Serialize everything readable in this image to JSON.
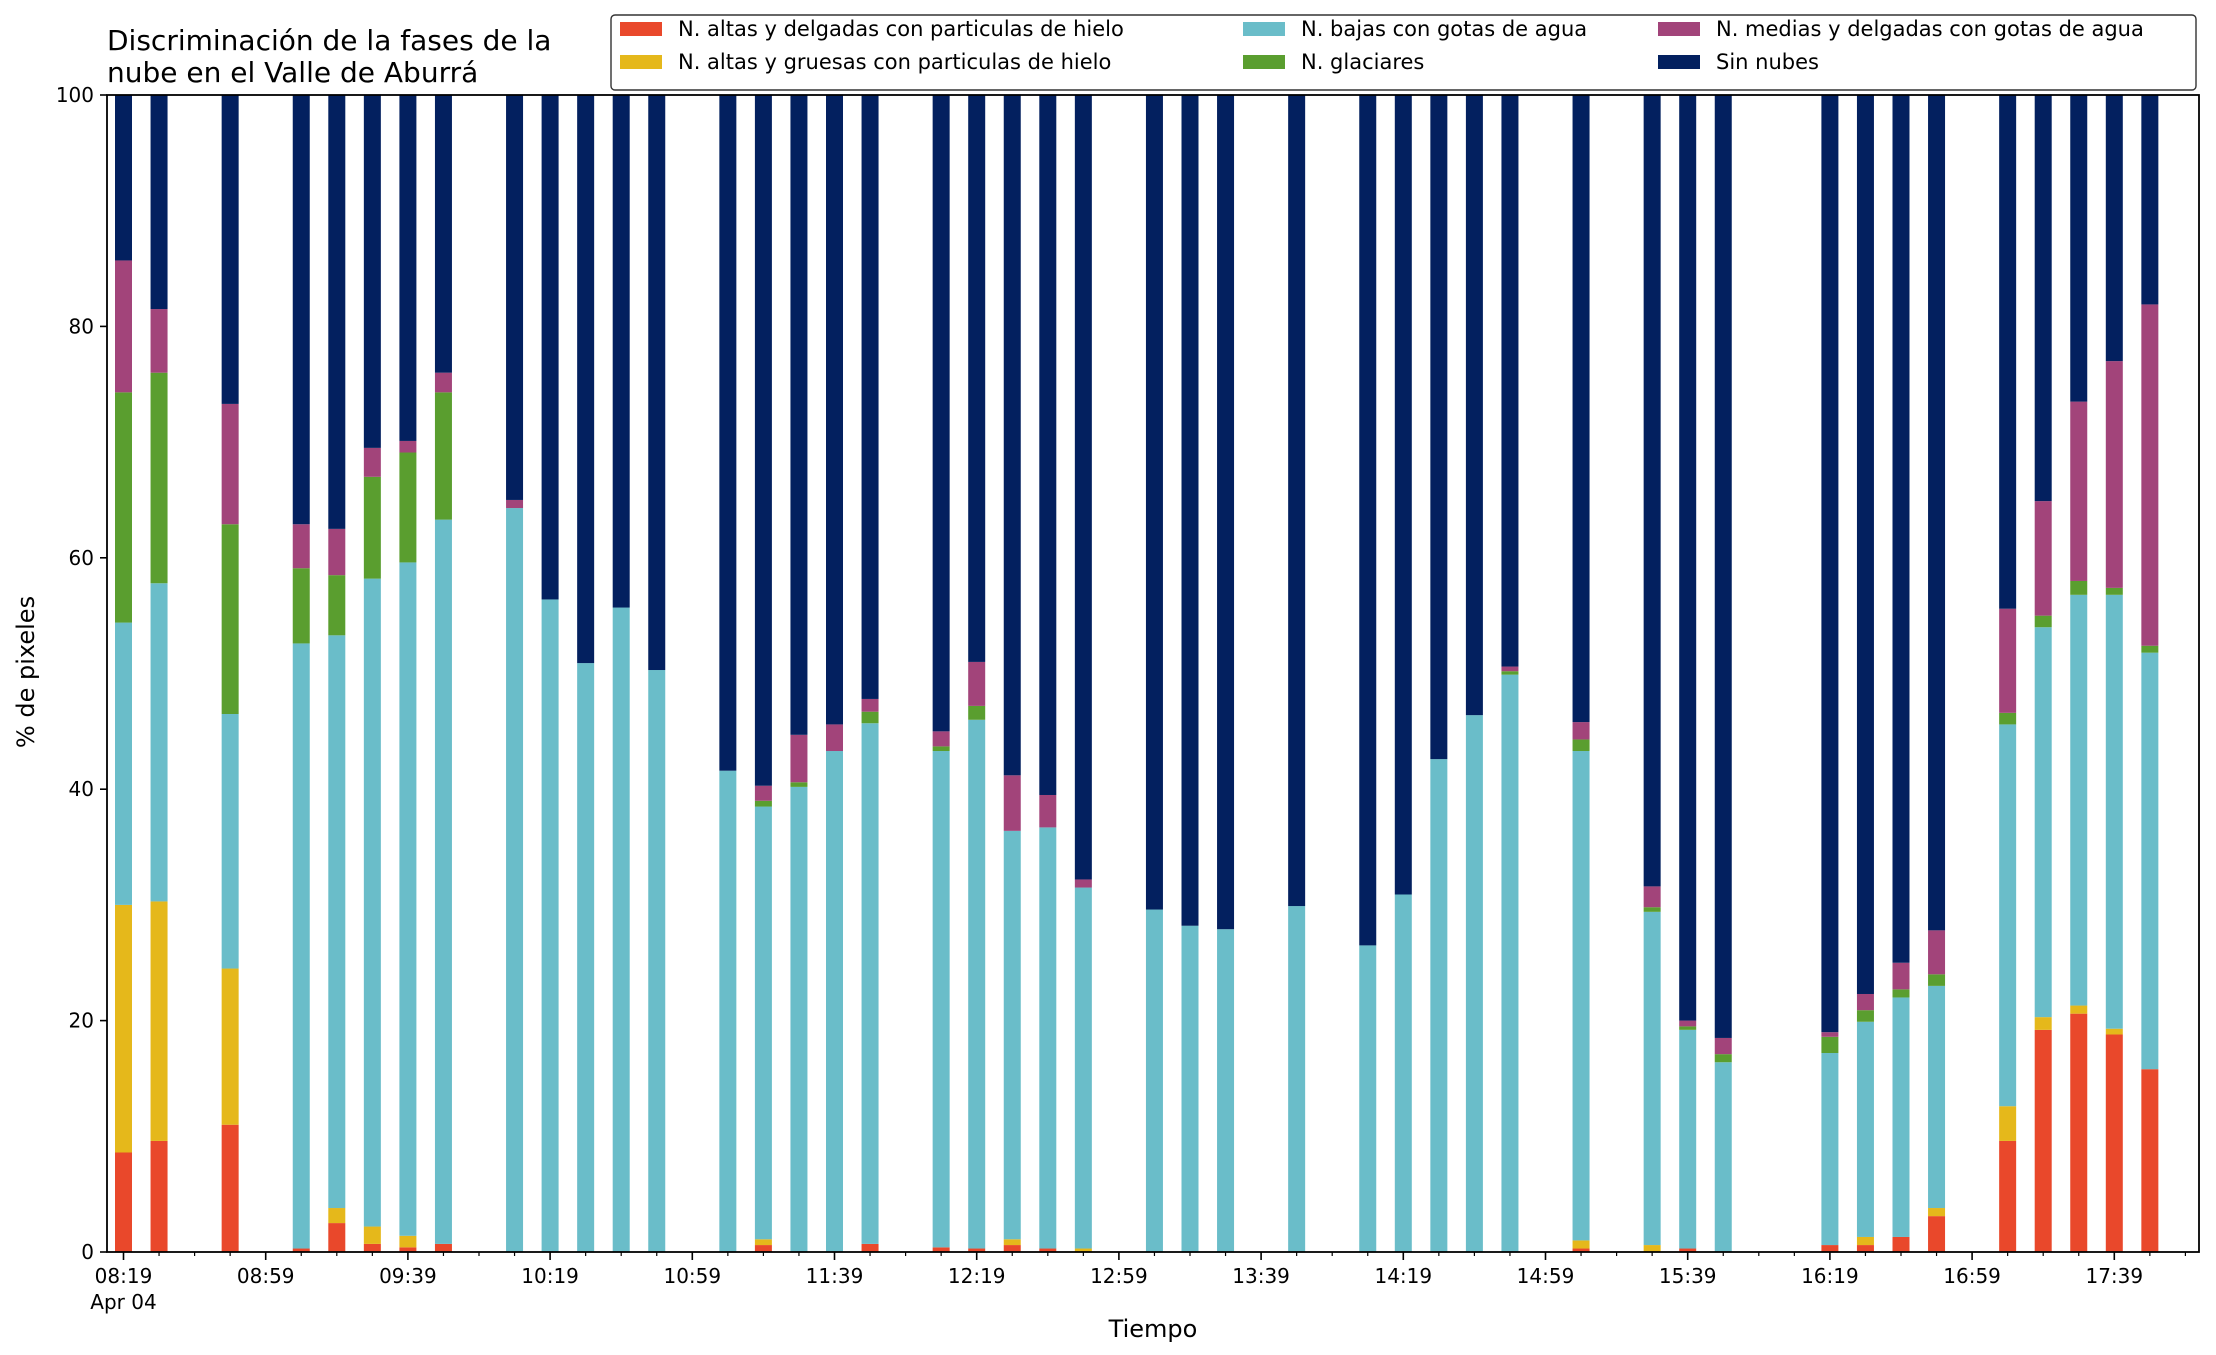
{
  "chart_data": {
    "type": "bar",
    "stacked": true,
    "title": [
      "Discriminación de la fases de la",
      "nube en el Valle de Aburrá"
    ],
    "xlabel": "Tiempo",
    "ylabel": "% de pixeles",
    "ylim": [
      0,
      100
    ],
    "yticks": [
      "0",
      "20",
      "40",
      "60",
      "80",
      "100"
    ],
    "x_start": "08:19",
    "x_step_minutes": 10,
    "x_slots": 59,
    "xticks": [
      {
        "label": "08:19",
        "slot": 0,
        "sublabel": "Apr 04"
      },
      {
        "label": "08:59",
        "slot": 4
      },
      {
        "label": "09:39",
        "slot": 8
      },
      {
        "label": "10:19",
        "slot": 12
      },
      {
        "label": "10:59",
        "slot": 16
      },
      {
        "label": "11:39",
        "slot": 20
      },
      {
        "label": "12:19",
        "slot": 24
      },
      {
        "label": "12:59",
        "slot": 28
      },
      {
        "label": "13:39",
        "slot": 32
      },
      {
        "label": "14:19",
        "slot": 36
      },
      {
        "label": "14:59",
        "slot": 40
      },
      {
        "label": "15:39",
        "slot": 44
      },
      {
        "label": "16:19",
        "slot": 48
      },
      {
        "label": "16:59",
        "slot": 52
      },
      {
        "label": "17:39",
        "slot": 56
      }
    ],
    "legend_position": "top-right",
    "series_colors": [
      "#e9482b",
      "#e5b81b",
      "#6abdc9",
      "#5a9e2f",
      "#a2447a",
      "#03205f"
    ],
    "legend": [
      {
        "name": "N. altas y delgadas con particulas de hielo",
        "color": "#e9482b"
      },
      {
        "name": "N. altas y gruesas con particulas de hielo",
        "color": "#e5b81b"
      },
      {
        "name": "N. bajas con gotas de agua",
        "color": "#6abdc9"
      },
      {
        "name": "N. glaciares",
        "color": "#5a9e2f"
      },
      {
        "name": "N. medias y delgadas con gotas de agua",
        "color": "#a2447a"
      },
      {
        "name": "Sin nubes",
        "color": "#03205f"
      }
    ],
    "bars": [
      {
        "slot": 0,
        "time": "08:19",
        "values": [
          8.6,
          21.4,
          24.4,
          19.9,
          11.4,
          14.3
        ]
      },
      {
        "slot": 1,
        "time": "08:29",
        "values": [
          9.6,
          20.7,
          27.5,
          18.2,
          5.5,
          18.5
        ]
      },
      {
        "slot": 3,
        "time": "08:49",
        "values": [
          11.0,
          13.5,
          22.0,
          16.4,
          10.4,
          26.7
        ]
      },
      {
        "slot": 5,
        "time": "09:09",
        "values": [
          0.3,
          0.0,
          52.3,
          6.5,
          3.8,
          37.1
        ]
      },
      {
        "slot": 6,
        "time": "09:19",
        "values": [
          2.5,
          1.3,
          49.5,
          5.2,
          4.0,
          37.5
        ]
      },
      {
        "slot": 7,
        "time": "09:29",
        "values": [
          0.7,
          1.5,
          56.0,
          8.8,
          2.5,
          30.5
        ]
      },
      {
        "slot": 8,
        "time": "09:39",
        "values": [
          0.4,
          1.0,
          58.2,
          9.5,
          1.0,
          29.9
        ]
      },
      {
        "slot": 9,
        "time": "09:49",
        "values": [
          0.7,
          0.0,
          62.6,
          11.0,
          1.7,
          24.0
        ]
      },
      {
        "slot": 11,
        "time": "10:09",
        "values": [
          0.0,
          0.0,
          64.3,
          0.0,
          0.7,
          35.0
        ]
      },
      {
        "slot": 12,
        "time": "10:19",
        "values": [
          0.0,
          0.0,
          56.4,
          0.0,
          0.0,
          43.6
        ]
      },
      {
        "slot": 13,
        "time": "10:29",
        "values": [
          0.0,
          0.0,
          50.9,
          0.0,
          0.0,
          49.1
        ]
      },
      {
        "slot": 14,
        "time": "10:39",
        "values": [
          0.0,
          0.0,
          55.7,
          0.0,
          0.0,
          44.3
        ]
      },
      {
        "slot": 15,
        "time": "10:49",
        "values": [
          0.0,
          0.0,
          50.3,
          0.0,
          0.0,
          49.7
        ]
      },
      {
        "slot": 17,
        "time": "11:09",
        "values": [
          0.0,
          0.0,
          41.6,
          0.0,
          0.0,
          58.4
        ]
      },
      {
        "slot": 18,
        "time": "11:19",
        "values": [
          0.6,
          0.5,
          37.4,
          0.5,
          1.3,
          59.7
        ]
      },
      {
        "slot": 19,
        "time": "11:29",
        "values": [
          0.0,
          0.0,
          40.2,
          0.4,
          4.1,
          55.3
        ]
      },
      {
        "slot": 20,
        "time": "11:39",
        "values": [
          0.0,
          0.0,
          43.3,
          0.0,
          2.3,
          54.4
        ]
      },
      {
        "slot": 21,
        "time": "11:49",
        "values": [
          0.7,
          0.0,
          45.0,
          1.0,
          1.1,
          52.2
        ]
      },
      {
        "slot": 23,
        "time": "12:09",
        "values": [
          0.4,
          0.0,
          42.9,
          0.4,
          1.3,
          55.0
        ]
      },
      {
        "slot": 24,
        "time": "12:19",
        "values": [
          0.3,
          0.0,
          45.7,
          1.2,
          3.8,
          49.0
        ]
      },
      {
        "slot": 25,
        "time": "12:29",
        "values": [
          0.6,
          0.5,
          35.3,
          0.0,
          4.8,
          58.8
        ]
      },
      {
        "slot": 26,
        "time": "12:39",
        "values": [
          0.3,
          0.0,
          36.4,
          0.0,
          2.8,
          60.5
        ]
      },
      {
        "slot": 27,
        "time": "12:49",
        "values": [
          0.0,
          0.3,
          31.2,
          0.0,
          0.7,
          67.8
        ]
      },
      {
        "slot": 29,
        "time": "13:09",
        "values": [
          0.0,
          0.0,
          29.6,
          0.0,
          0.0,
          70.4
        ]
      },
      {
        "slot": 30,
        "time": "13:19",
        "values": [
          0.0,
          0.0,
          28.2,
          0.0,
          0.0,
          71.8
        ]
      },
      {
        "slot": 31,
        "time": "13:29",
        "values": [
          0.0,
          0.0,
          27.9,
          0.0,
          0.0,
          72.1
        ]
      },
      {
        "slot": 33,
        "time": "13:49",
        "values": [
          0.0,
          0.0,
          29.9,
          0.0,
          0.0,
          70.1
        ]
      },
      {
        "slot": 35,
        "time": "14:09",
        "values": [
          0.0,
          0.0,
          26.5,
          0.0,
          0.0,
          73.5
        ]
      },
      {
        "slot": 36,
        "time": "14:19",
        "values": [
          0.0,
          0.0,
          30.9,
          0.0,
          0.0,
          69.1
        ]
      },
      {
        "slot": 37,
        "time": "14:29",
        "values": [
          0.0,
          0.0,
          42.6,
          0.0,
          0.0,
          57.4
        ]
      },
      {
        "slot": 38,
        "time": "14:39",
        "values": [
          0.0,
          0.0,
          46.4,
          0.0,
          0.0,
          53.6
        ]
      },
      {
        "slot": 39,
        "time": "14:49",
        "values": [
          0.0,
          0.0,
          49.9,
          0.3,
          0.4,
          49.4
        ]
      },
      {
        "slot": 41,
        "time": "15:09",
        "values": [
          0.3,
          0.7,
          42.3,
          1.0,
          1.5,
          54.2
        ]
      },
      {
        "slot": 43,
        "time": "15:29",
        "values": [
          0.0,
          0.6,
          28.8,
          0.4,
          1.8,
          68.4
        ]
      },
      {
        "slot": 44,
        "time": "15:39",
        "values": [
          0.3,
          0.0,
          18.9,
          0.3,
          0.5,
          80.0
        ]
      },
      {
        "slot": 45,
        "time": "15:49",
        "values": [
          0.0,
          0.0,
          16.4,
          0.7,
          1.4,
          81.5
        ]
      },
      {
        "slot": 48,
        "time": "16:19",
        "values": [
          0.6,
          0.0,
          16.6,
          1.4,
          0.4,
          81.0
        ]
      },
      {
        "slot": 49,
        "time": "16:29",
        "values": [
          0.6,
          0.7,
          18.6,
          1.0,
          1.4,
          77.7
        ]
      },
      {
        "slot": 50,
        "time": "16:39",
        "values": [
          1.3,
          0.0,
          20.7,
          0.7,
          2.3,
          75.0
        ]
      },
      {
        "slot": 51,
        "time": "16:49",
        "values": [
          3.1,
          0.7,
          19.2,
          1.0,
          3.8,
          72.2
        ]
      },
      {
        "slot": 53,
        "time": "17:09",
        "values": [
          9.6,
          3.0,
          33.0,
          1.0,
          9.0,
          44.4
        ]
      },
      {
        "slot": 54,
        "time": "17:19",
        "values": [
          19.2,
          1.1,
          33.7,
          1.0,
          9.9,
          35.1
        ]
      },
      {
        "slot": 55,
        "time": "17:29",
        "values": [
          20.6,
          0.7,
          35.5,
          1.2,
          15.5,
          26.5
        ]
      },
      {
        "slot": 56,
        "time": "17:39",
        "values": [
          18.8,
          0.5,
          37.5,
          0.6,
          19.6,
          23.0
        ]
      },
      {
        "slot": 57,
        "time": "17:49",
        "values": [
          15.8,
          0.0,
          36.0,
          0.6,
          29.5,
          18.1
        ]
      }
    ]
  }
}
